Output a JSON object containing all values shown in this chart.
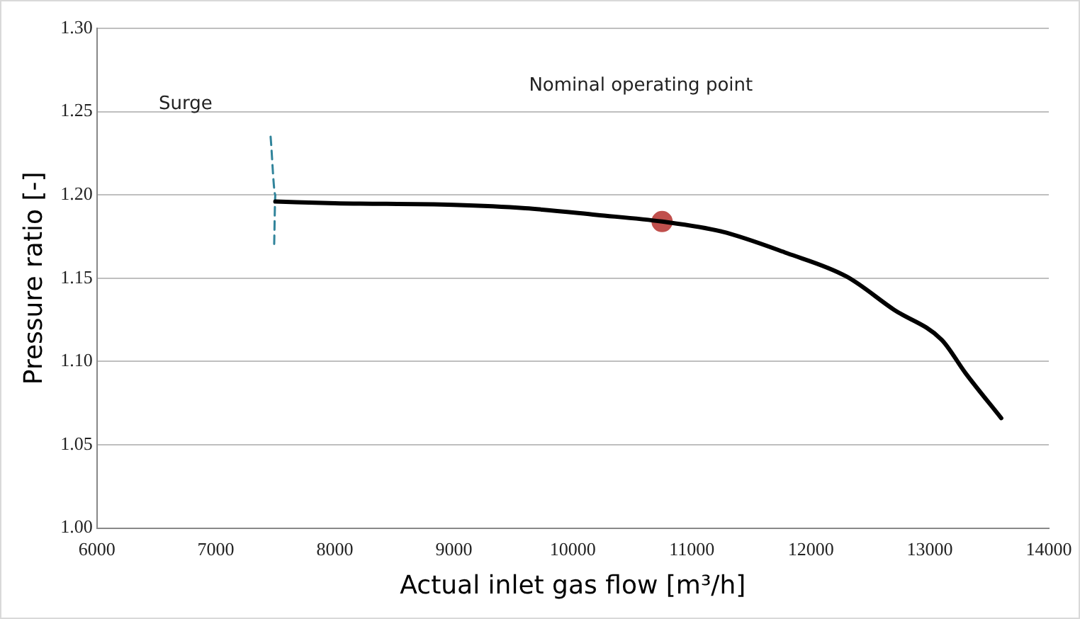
{
  "chart_data": {
    "type": "line",
    "xlabel": "Actual inlet gas flow [m³/h]",
    "ylabel": "Pressure ratio [-]",
    "xlim": [
      6000,
      14000
    ],
    "xticks": [
      6000,
      7000,
      8000,
      9000,
      10000,
      11000,
      12000,
      13000,
      14000
    ],
    "ylim": [
      1.0,
      1.3
    ],
    "yticks": [
      {
        "value": 1.0,
        "label": "1.00"
      },
      1.05,
      {
        "value": 1.1,
        "label": "1.10"
      },
      1.15,
      {
        "value": 1.2,
        "label": "1.20"
      },
      1.25,
      {
        "value": 1.3,
        "label": "1.30"
      }
    ],
    "grid": "y",
    "legend": false,
    "annotations": [
      "Surge",
      "Nominal operating point"
    ],
    "series": [
      {
        "color": "#000000",
        "marker": "none",
        "line_style": "solid",
        "x": [
          7500,
          8000,
          9000,
          9600,
          10200,
          10750,
          11250,
          11800,
          12300,
          12700,
          13100,
          13300,
          13600
        ],
        "values": [
          1.196,
          1.195,
          1.194,
          1.192,
          1.188,
          1.184,
          1.178,
          1.165,
          1.151,
          1.131,
          1.113,
          1.093,
          1.066
        ]
      },
      {
        "color": "#31849b",
        "marker": "none",
        "line_style": "dashed",
        "x": [
          7460,
          7500,
          7490
        ],
        "values": [
          1.235,
          1.2,
          1.17
        ]
      },
      {
        "type": "scatter",
        "color": "#c0504d",
        "marker": "circle",
        "x": [
          10750
        ],
        "values": [
          1.184
        ]
      }
    ]
  }
}
